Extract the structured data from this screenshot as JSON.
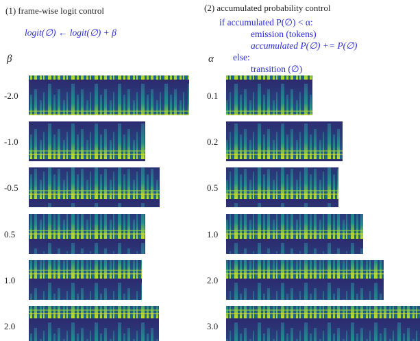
{
  "left": {
    "title": "(1) frame-wise logit control",
    "formula": "logit(∅) ← logit(∅) + β",
    "symbol": "β",
    "labels": [
      "-2.0",
      "-1.0",
      "-0.5",
      "0.5",
      "1.0",
      "2.0"
    ]
  },
  "right": {
    "title": "(2) accumulated probability control",
    "code": [
      "if accumulated P(∅) < α:",
      "emission (tokens)",
      "accumulated P(∅) += P(∅)",
      "else:",
      "transition (∅)"
    ],
    "symbol": "α",
    "labels": [
      "0.1",
      "0.2",
      "0.5",
      "1.0",
      "2.0",
      "3.0"
    ]
  }
}
